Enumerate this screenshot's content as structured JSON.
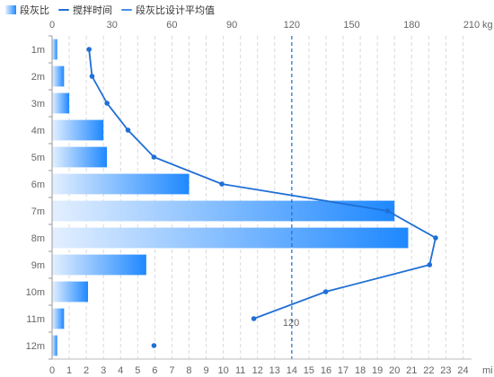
{
  "legend": {
    "bar_label": "段灰比",
    "line_label": "搅拌时间",
    "avg_label": "段灰比设计平均值"
  },
  "chart_data": {
    "type": "bar",
    "categories": [
      "1m",
      "2m",
      "3m",
      "4m",
      "5m",
      "6m",
      "7m",
      "8m",
      "9m",
      "10m",
      "11m",
      "12m"
    ],
    "series": [
      {
        "name": "段灰比",
        "type": "bar",
        "values": [
          0.3,
          0.7,
          1.0,
          3.0,
          3.2,
          8.0,
          20.0,
          20.8,
          5.5,
          2.1,
          0.7,
          0.3
        ]
      },
      {
        "name": "搅拌时间",
        "type": "line",
        "values": [
          18.5,
          20,
          27.5,
          38,
          51,
          85,
          168,
          192,
          189,
          137,
          101,
          null
        ]
      }
    ],
    "isolated_point": {
      "category": "12m",
      "value": 51
    },
    "avg_line": {
      "value": 120,
      "label": "120"
    },
    "x_top": {
      "ticks": [
        0,
        30,
        60,
        90,
        120,
        150,
        180,
        210
      ],
      "unit": "kg",
      "range": [
        0,
        210
      ]
    },
    "x_bottom": {
      "ticks": [
        0,
        1,
        2,
        3,
        4,
        5,
        6,
        7,
        8,
        9,
        10,
        11,
        12,
        13,
        14,
        15,
        16,
        17,
        18,
        19,
        20,
        21,
        22,
        23,
        24
      ],
      "unit": "mi",
      "range": [
        0,
        24.5
      ]
    },
    "colors": {
      "bar_start": "#e3efff",
      "bar_end": "#1e88ff",
      "line": "#1f6fd6",
      "avg": "#1f6fd6",
      "grid": "#d9d9d9",
      "text": "#666666"
    }
  }
}
